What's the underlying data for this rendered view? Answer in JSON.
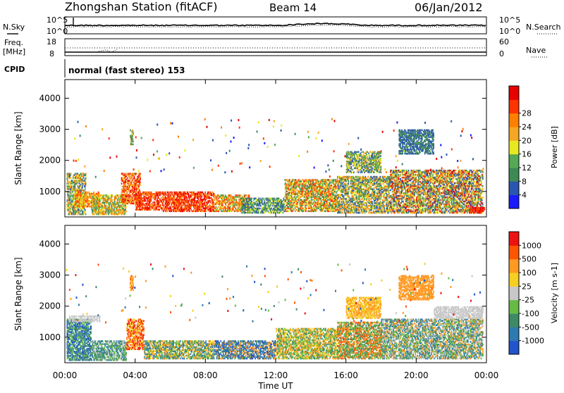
{
  "header": {
    "station": "Zhongshan Station (fitACF)",
    "beam": "Beam 14",
    "date": "06/Jan/2012"
  },
  "side_labels": {
    "nsky": "N.Sky",
    "nsearch": "N.Search",
    "freq": "Freq.",
    "freq_unit": "[MHz]",
    "nave": "Nave",
    "cpid": "CPID"
  },
  "noise_panel": {
    "left_ticks": [
      "10^5",
      "10^0"
    ],
    "right_ticks": [
      "10^5",
      "10^0"
    ]
  },
  "freq_panel": {
    "left_ticks": [
      "18",
      "8"
    ],
    "right_ticks": [
      "60",
      "0"
    ]
  },
  "cpid_text": "normal (fast stereo) 153",
  "chart_data": [
    {
      "type": "heatmap",
      "name": "power",
      "ylabel": "Slant Range [km]",
      "y_ticks": [
        "1000",
        "2000",
        "3000",
        "4000"
      ],
      "ylim": [
        180,
        4600
      ],
      "x_ticks": [
        "00:00",
        "04:00",
        "08:00",
        "12:00",
        "16:00",
        "20:00",
        "00:00"
      ],
      "xlim": [
        0,
        24
      ],
      "colorbar": {
        "label": "Power [dB]",
        "ticks": [
          "4",
          "8",
          "12",
          "16",
          "20",
          "24",
          "28"
        ],
        "colors": [
          "#1a1aff",
          "#2a55b0",
          "#3d8a55",
          "#55a855",
          "#e8e820",
          "#f5a623",
          "#ff7f00",
          "#ff3300",
          "#e60000"
        ]
      }
    },
    {
      "type": "heatmap",
      "name": "velocity",
      "ylabel": "Slant Range [km]",
      "y_ticks": [
        "1000",
        "2000",
        "3000",
        "4000"
      ],
      "ylim": [
        180,
        4600
      ],
      "x_ticks": [
        "00:00",
        "04:00",
        "08:00",
        "12:00",
        "16:00",
        "20:00",
        "00:00"
      ],
      "xlim": [
        0,
        24
      ],
      "xlabel": "Time UT",
      "colorbar": {
        "label": "Velocity [m s-1]",
        "ticks": [
          "1000",
          "500",
          "100",
          "25",
          "-25",
          "-100",
          "-500",
          "-1000"
        ],
        "colors": [
          "#2255cc",
          "#2d7ab0",
          "#3d8a66",
          "#66bb44",
          "#c8c8c8",
          "#f5d020",
          "#ff9922",
          "#ff5500",
          "#ee1111"
        ]
      }
    }
  ]
}
